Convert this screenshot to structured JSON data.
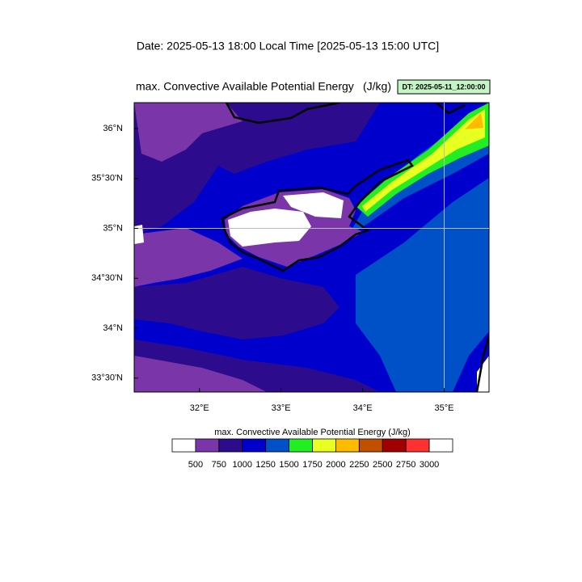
{
  "header": {
    "date_line": "Date: 2025-05-13  18:00 Local Time [2025-05-13  15:00 UTC]"
  },
  "plot": {
    "title": "max. Convective Available Potential Energy",
    "units": "(J/kg)",
    "dt_label": "DT: 2025-05-11_12:00:00"
  },
  "map": {
    "xlim": [
      31.2,
      35.55
    ],
    "ylim": [
      33.36,
      36.26
    ],
    "xticks": [
      {
        "value": 32,
        "label": "32°E"
      },
      {
        "value": 33,
        "label": "33°E"
      },
      {
        "value": 34,
        "label": "34°E"
      },
      {
        "value": 35,
        "label": "35°E"
      }
    ],
    "yticks": [
      {
        "value": 33.5,
        "label": "33°30'N"
      },
      {
        "value": 34,
        "label": "34°N"
      },
      {
        "value": 34.5,
        "label": "34°30'N"
      },
      {
        "value": 35,
        "label": "35°N"
      },
      {
        "value": 35.5,
        "label": "35°30'N"
      },
      {
        "value": 36,
        "label": "36°N"
      }
    ],
    "grid_lon": 35,
    "grid_lat": 35
  },
  "colorbar": {
    "title": "max. Convective Available Potential Energy  (J/kg)",
    "levels": [
      500,
      750,
      1000,
      1250,
      1500,
      1750,
      2000,
      2250,
      2500,
      2750,
      3000
    ],
    "colors": [
      "#ffffff",
      "#7a36a8",
      "#2c0c8c",
      "#0000cd",
      "#0050c8",
      "#22ee22",
      "#e8ff22",
      "#ffbb00",
      "#c05000",
      "#a00000",
      "#ff3030",
      "#ffffff"
    ]
  }
}
